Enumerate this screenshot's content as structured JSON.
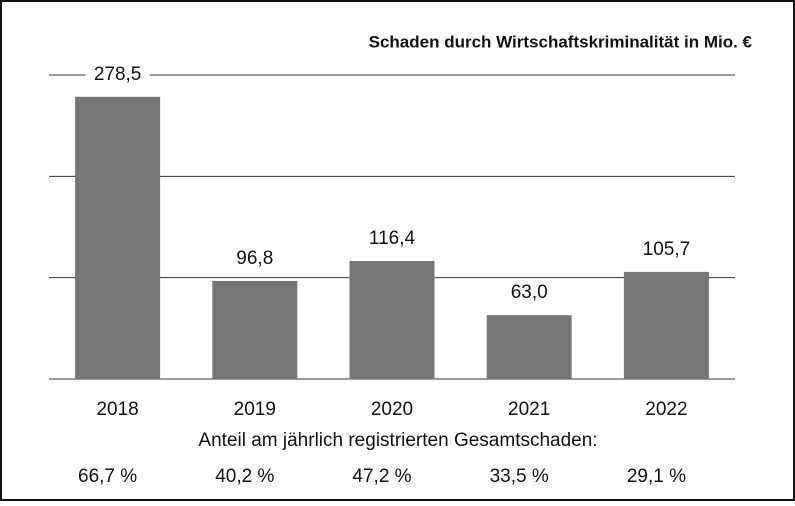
{
  "chart_data": {
    "type": "bar",
    "title": "Schaden durch Wirtschaftskriminalität in Mio. €",
    "categories": [
      "2018",
      "2019",
      "2020",
      "2021",
      "2022"
    ],
    "values": [
      278.5,
      96.8,
      116.4,
      63.0,
      105.7
    ],
    "value_labels": [
      "278,5",
      "96,8",
      "116,4",
      "63,0",
      "105,7"
    ],
    "color": "#757575",
    "ylim": [
      0,
      300
    ],
    "yticks": [
      0,
      100,
      200,
      300
    ],
    "grid": true,
    "footnote_title": "Anteil am jährlich registrierten Gesamtschaden:",
    "shares": [
      "66,7 %",
      "40,2 %",
      "47,2 %",
      "33,5 %",
      "29,1 %"
    ]
  }
}
